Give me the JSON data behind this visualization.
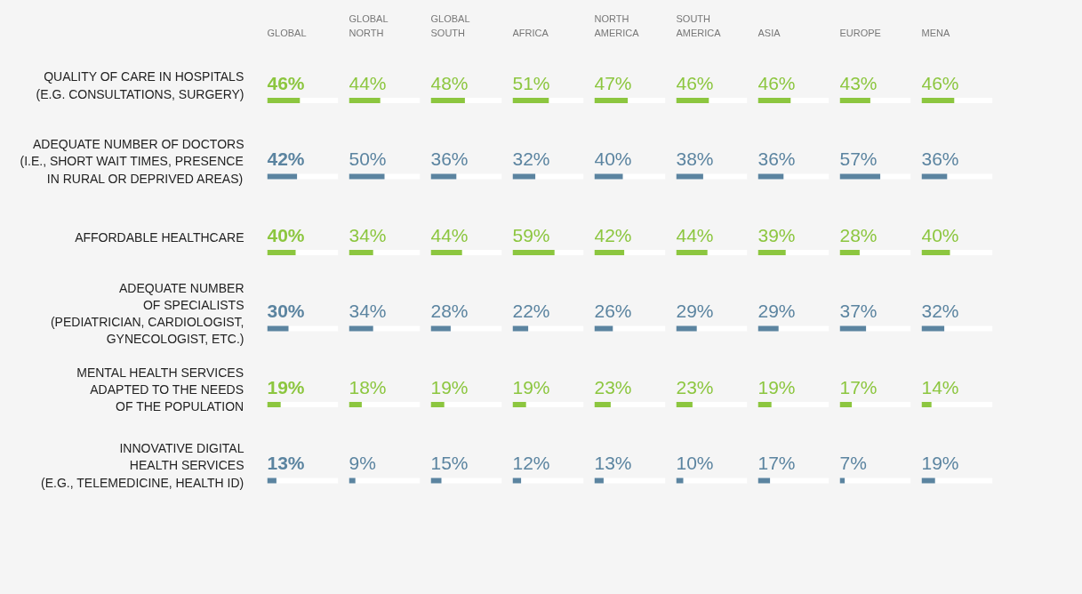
{
  "chart_data": [
    {
      "type": "bar",
      "orientation": "horizontal",
      "title": "GLOBAL",
      "categories": [
        "QUALITY OF CARE IN HOSPITALS\n(E.G. CONSULTATIONS, SURGERY)",
        "ADEQUATE NUMBER OF DOCTORS\n(I.E., SHORT WAIT TIMES, PRESENCE\nIN RURAL OR DEPRIVED AREAS)",
        "AFFORDABLE HEALTHCARE",
        "ADEQUATE NUMBER\nOF SPECIALISTS\n(PEDIATRICIAN, CARDIOLOGIST,\nGYNECOLOGIST, ETC.)",
        "MENTAL HEALTH SERVICES\nADAPTED TO THE NEEDS\nOF THE POPULATION",
        "INNOVATIVE DIGITAL\nHEALTH SERVICES\n(E.G., TELEMEDICINE, HEALTH ID)"
      ],
      "values": [
        46,
        42,
        40,
        30,
        19,
        13
      ],
      "value_labels": [
        "46%",
        "42%",
        "40%",
        "30%",
        "19%",
        "13%"
      ],
      "colors": [
        "#8cc63f",
        "#5b84a0",
        "#8cc63f",
        "#5b84a0",
        "#8cc63f",
        "#5b84a0"
      ],
      "xlim": [
        0,
        100
      ],
      "tick_labels": "y"
    },
    {
      "type": "bar",
      "orientation": "horizontal",
      "title": "GLOBAL\nNORTH",
      "categories": [
        null,
        null,
        null,
        null,
        null,
        null
      ],
      "values": [
        44,
        50,
        34,
        34,
        18,
        9
      ],
      "value_labels": [
        "44%",
        "50%",
        "34%",
        "34%",
        "18%",
        "9%"
      ],
      "colors": [
        "#8cc63f",
        "#5b84a0",
        "#8cc63f",
        "#5b84a0",
        "#8cc63f",
        "#5b84a0"
      ],
      "xlim": [
        0,
        100
      ],
      "tick_labels": false
    },
    {
      "type": "bar",
      "orientation": "horizontal",
      "title": "GLOBAL\nSOUTH",
      "categories": [
        null,
        null,
        null,
        null,
        null,
        null
      ],
      "values": [
        48,
        36,
        44,
        28,
        19,
        15
      ],
      "value_labels": [
        "48%",
        "36%",
        "44%",
        "28%",
        "19%",
        "15%"
      ],
      "colors": [
        "#8cc63f",
        "#5b84a0",
        "#8cc63f",
        "#5b84a0",
        "#8cc63f",
        "#5b84a0"
      ],
      "xlim": [
        0,
        100
      ],
      "tick_labels": false
    },
    {
      "type": "bar",
      "orientation": "horizontal",
      "title": "AFRICA",
      "categories": [
        null,
        null,
        null,
        null,
        null,
        null
      ],
      "values": [
        51,
        32,
        59,
        22,
        19,
        12
      ],
      "value_labels": [
        "51%",
        "32%",
        "59%",
        "22%",
        "19%",
        "12%"
      ],
      "colors": [
        "#8cc63f",
        "#5b84a0",
        "#8cc63f",
        "#5b84a0",
        "#8cc63f",
        "#5b84a0"
      ],
      "xlim": [
        0,
        100
      ],
      "tick_labels": false
    },
    {
      "type": "bar",
      "orientation": "horizontal",
      "title": "NORTH\nAMERICA",
      "categories": [
        null,
        null,
        null,
        null,
        null,
        null
      ],
      "values": [
        47,
        40,
        42,
        26,
        23,
        13
      ],
      "value_labels": [
        "47%",
        "40%",
        "42%",
        "26%",
        "23%",
        "13%"
      ],
      "colors": [
        "#8cc63f",
        "#5b84a0",
        "#8cc63f",
        "#5b84a0",
        "#8cc63f",
        "#5b84a0"
      ],
      "xlim": [
        0,
        100
      ],
      "tick_labels": false
    },
    {
      "type": "bar",
      "orientation": "horizontal",
      "title": "SOUTH\nAMERICA",
      "categories": [
        null,
        null,
        null,
        null,
        null,
        null
      ],
      "values": [
        46,
        38,
        44,
        29,
        23,
        10
      ],
      "value_labels": [
        "46%",
        "38%",
        "44%",
        "29%",
        "23%",
        "10%"
      ],
      "colors": [
        "#8cc63f",
        "#5b84a0",
        "#8cc63f",
        "#5b84a0",
        "#8cc63f",
        "#5b84a0"
      ],
      "xlim": [
        0,
        100
      ],
      "tick_labels": false
    },
    {
      "type": "bar",
      "orientation": "horizontal",
      "title": "ASIA",
      "categories": [
        null,
        null,
        null,
        null,
        null,
        null
      ],
      "values": [
        46,
        36,
        39,
        29,
        19,
        17
      ],
      "value_labels": [
        "46%",
        "36%",
        "39%",
        "29%",
        "19%",
        "17%"
      ],
      "colors": [
        "#8cc63f",
        "#5b84a0",
        "#8cc63f",
        "#5b84a0",
        "#8cc63f",
        "#5b84a0"
      ],
      "xlim": [
        0,
        100
      ],
      "tick_labels": false
    },
    {
      "type": "bar",
      "orientation": "horizontal",
      "title": "EUROPE",
      "categories": [
        null,
        null,
        null,
        null,
        null,
        null
      ],
      "values": [
        43,
        57,
        28,
        37,
        17,
        7
      ],
      "value_labels": [
        "43%",
        "57%",
        "28%",
        "37%",
        "17%",
        "7%"
      ],
      "colors": [
        "#8cc63f",
        "#5b84a0",
        "#8cc63f",
        "#5b84a0",
        "#8cc63f",
        "#5b84a0"
      ],
      "xlim": [
        0,
        100
      ],
      "tick_labels": false
    },
    {
      "type": "bar",
      "orientation": "horizontal",
      "title": "MENA",
      "categories": [
        null,
        null,
        null,
        null,
        null,
        null
      ],
      "values": [
        46,
        36,
        40,
        32,
        14,
        19
      ],
      "value_labels": [
        "46%",
        "36%",
        "40%",
        "32%",
        "14%",
        "19%"
      ],
      "colors": [
        "#8cc63f",
        "#5b84a0",
        "#8cc63f",
        "#5b84a0",
        "#8cc63f",
        "#5b84a0"
      ],
      "xlim": [
        0,
        100
      ],
      "tick_labels": false
    }
  ]
}
